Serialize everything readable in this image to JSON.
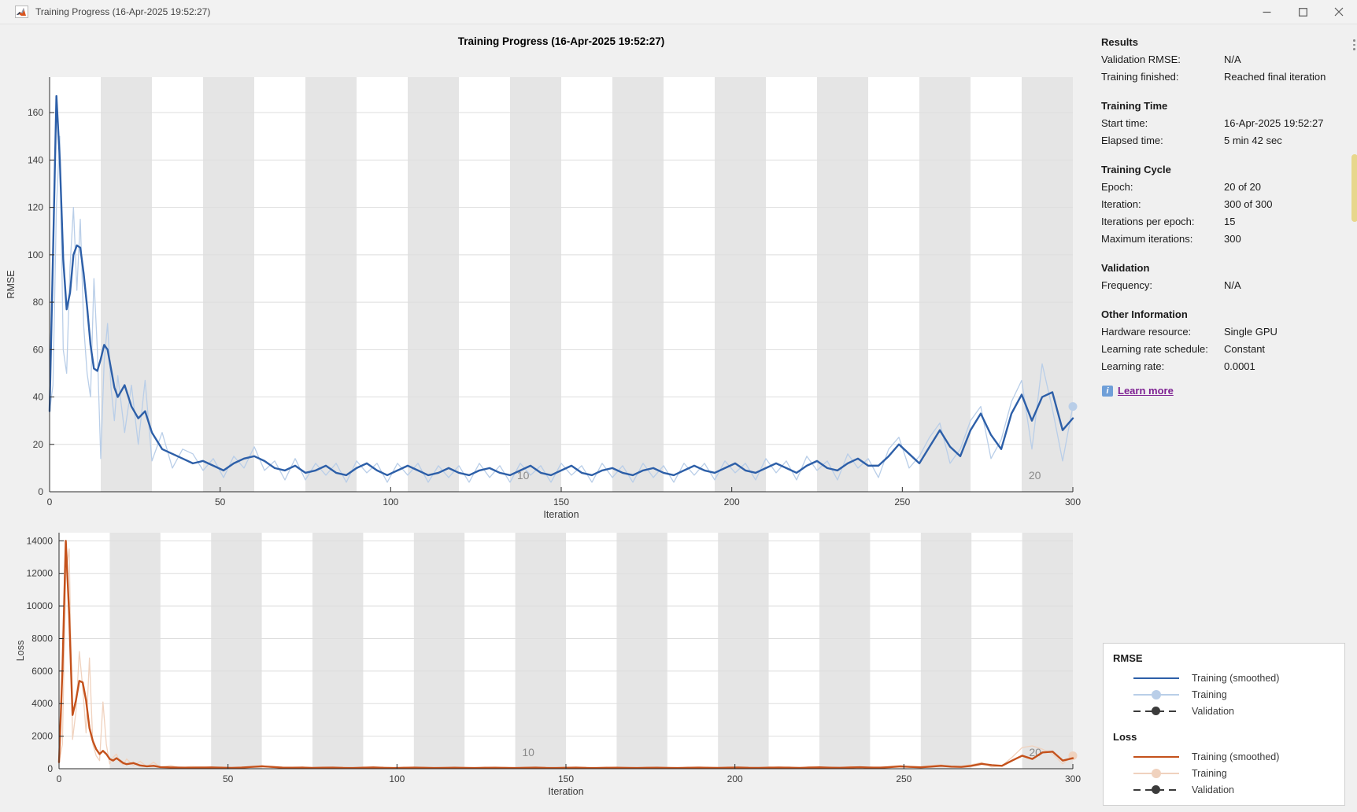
{
  "window": {
    "title": "Training Progress (16-Apr-2025 19:52:27)",
    "controls": [
      "minimize",
      "maximize",
      "close"
    ]
  },
  "figure_title": "Training Progress (16-Apr-2025 19:52:27)",
  "panel": {
    "sections": [
      {
        "title": "Results",
        "rows": [
          {
            "label": "Validation RMSE:",
            "value": "N/A"
          },
          {
            "label": "Training finished:",
            "value": "Reached final iteration"
          }
        ]
      },
      {
        "title": "Training Time",
        "rows": [
          {
            "label": "Start time:",
            "value": "16-Apr-2025 19:52:27"
          },
          {
            "label": "Elapsed time:",
            "value": "5 min 42 sec"
          }
        ]
      },
      {
        "title": "Training Cycle",
        "rows": [
          {
            "label": "Epoch:",
            "value": "20 of 20"
          },
          {
            "label": "Iteration:",
            "value": "300 of 300"
          },
          {
            "label": "Iterations per epoch:",
            "value": "15"
          },
          {
            "label": "Maximum iterations:",
            "value": "300"
          }
        ]
      },
      {
        "title": "Validation",
        "rows": [
          {
            "label": "Frequency:",
            "value": "N/A"
          }
        ]
      },
      {
        "title": "Other Information",
        "rows": [
          {
            "label": "Hardware resource:",
            "value": "Single GPU"
          },
          {
            "label": "Learning rate schedule:",
            "value": "Constant"
          },
          {
            "label": "Learning rate:",
            "value": "0.0001"
          }
        ]
      }
    ],
    "learn_more": "Learn more"
  },
  "legend": {
    "groups": [
      {
        "title": "RMSE",
        "items": [
          {
            "label": "Training (smoothed)",
            "style": "solid",
            "color_key": "rmse_smoothed"
          },
          {
            "label": "Training",
            "style": "marker",
            "color_key": "rmse_raw"
          },
          {
            "label": "Validation",
            "style": "dashed-marker",
            "color_key": "validation"
          }
        ]
      },
      {
        "title": "Loss",
        "items": [
          {
            "label": "Training (smoothed)",
            "style": "solid",
            "color_key": "loss_smoothed"
          },
          {
            "label": "Training",
            "style": "marker",
            "color_key": "loss_raw"
          },
          {
            "label": "Validation",
            "style": "dashed-marker",
            "color_key": "validation"
          }
        ]
      }
    ]
  },
  "colors": {
    "rmse_smoothed": "#2D5FA8",
    "rmse_raw": "#B9CEE8",
    "loss_smoothed": "#C4511B",
    "loss_raw": "#F0D2BE",
    "validation": "#3B3B3B",
    "epoch_band": "#E5E5E5",
    "gridline": "#DEDEDE",
    "axis": "#2B2B2B",
    "tick_text": "#3B3B3B",
    "epoch_label": "#8A8A8A",
    "link": "#7D2092",
    "info_icon": "#6F9FD8"
  },
  "chart_data": [
    {
      "type": "line",
      "id": "rmse",
      "xlabel": "Iteration",
      "ylabel": "RMSE",
      "xlim": [
        0,
        300
      ],
      "ylim": [
        0,
        175
      ],
      "xticks": [
        0,
        50,
        100,
        150,
        200,
        250,
        300
      ],
      "yticks": [
        0,
        20,
        40,
        60,
        80,
        100,
        120,
        140,
        160
      ],
      "grid": true,
      "epochs": {
        "count": 20,
        "iterations_per_epoch": 15,
        "shaded": "even"
      },
      "epoch_labels": [
        {
          "text": "10",
          "iteration": 137
        },
        {
          "text": "20",
          "iteration": 287
        }
      ],
      "x": [
        0,
        1,
        2,
        3,
        4,
        5,
        6,
        7,
        8,
        9,
        10,
        11,
        12,
        13,
        14,
        15,
        16,
        17,
        18,
        19,
        20,
        22,
        24,
        26,
        28,
        30,
        33,
        36,
        39,
        42,
        45,
        48,
        51,
        54,
        57,
        60,
        63,
        66,
        69,
        72,
        75,
        78,
        81,
        84,
        87,
        90,
        93,
        96,
        99,
        102,
        105,
        108,
        111,
        114,
        117,
        120,
        123,
        126,
        129,
        132,
        135,
        138,
        141,
        144,
        147,
        150,
        153,
        156,
        159,
        162,
        165,
        168,
        171,
        174,
        177,
        180,
        183,
        186,
        189,
        192,
        195,
        198,
        201,
        204,
        207,
        210,
        213,
        216,
        219,
        222,
        225,
        228,
        231,
        234,
        237,
        240,
        243,
        246,
        249,
        252,
        255,
        258,
        261,
        264,
        267,
        270,
        273,
        276,
        279,
        282,
        285,
        288,
        291,
        294,
        297,
        300
      ],
      "series": [
        {
          "name": "Training (smoothed)",
          "color_key": "rmse_smoothed",
          "width": 2.4,
          "end_marker": false,
          "y": [
            34,
            100,
            167,
            140,
            98,
            77,
            84,
            100,
            104,
            103,
            92,
            78,
            62,
            52,
            51,
            56,
            62,
            60,
            52,
            44,
            40,
            45,
            36,
            31,
            34,
            25,
            18,
            16,
            14,
            12,
            13,
            11,
            9,
            12,
            14,
            15,
            13,
            10,
            9,
            11,
            8,
            9,
            11,
            8,
            7,
            10,
            12,
            9,
            7,
            9,
            11,
            9,
            7,
            8,
            10,
            8,
            7,
            9,
            10,
            8,
            7,
            9,
            11,
            8,
            7,
            9,
            11,
            8,
            7,
            9,
            10,
            8,
            7,
            9,
            10,
            8,
            7,
            9,
            11,
            9,
            8,
            10,
            12,
            9,
            8,
            10,
            12,
            10,
            8,
            11,
            13,
            10,
            9,
            12,
            14,
            11,
            11,
            15,
            20,
            16,
            12,
            19,
            26,
            19,
            15,
            26,
            33,
            24,
            18,
            33,
            41,
            30,
            40,
            42,
            26,
            31
          ]
        },
        {
          "name": "Training",
          "color_key": "rmse_raw",
          "width": 1.3,
          "end_marker": true,
          "y": [
            34,
            45,
            120,
            150,
            60,
            50,
            95,
            120,
            85,
            115,
            70,
            50,
            40,
            90,
            60,
            14,
            55,
            71,
            44,
            30,
            49,
            25,
            45,
            20,
            47,
            13,
            25,
            10,
            18,
            16,
            9,
            14,
            6,
            15,
            10,
            19,
            9,
            13,
            5,
            14,
            5,
            12,
            7,
            12,
            4,
            13,
            8,
            12,
            4,
            12,
            7,
            12,
            4,
            11,
            6,
            11,
            4,
            12,
            6,
            11,
            4,
            12,
            7,
            11,
            4,
            12,
            7,
            11,
            4,
            12,
            6,
            11,
            4,
            12,
            6,
            11,
            4,
            12,
            7,
            12,
            5,
            13,
            8,
            12,
            5,
            14,
            8,
            13,
            5,
            15,
            9,
            13,
            5,
            16,
            10,
            14,
            6,
            18,
            23,
            10,
            15,
            23,
            29,
            12,
            18,
            30,
            36,
            14,
            22,
            38,
            47,
            18,
            54,
            35,
            13,
            36
          ]
        },
        {
          "name": "Validation",
          "color_key": "validation",
          "width": 1.5,
          "y": []
        }
      ]
    },
    {
      "type": "line",
      "id": "loss",
      "xlabel": "Iteration",
      "ylabel": "Loss",
      "xlim": [
        0,
        300
      ],
      "ylim": [
        0,
        14500
      ],
      "xticks": [
        0,
        50,
        100,
        150,
        200,
        250,
        300
      ],
      "yticks": [
        0,
        2000,
        4000,
        6000,
        8000,
        10000,
        12000,
        14000
      ],
      "grid": true,
      "epochs": {
        "count": 20,
        "iterations_per_epoch": 15,
        "shaded": "even"
      },
      "epoch_labels": [
        {
          "text": "10",
          "iteration": 137
        },
        {
          "text": "20",
          "iteration": 287
        }
      ],
      "x": [
        0,
        1,
        2,
        3,
        4,
        5,
        6,
        7,
        8,
        9,
        10,
        11,
        12,
        13,
        14,
        15,
        16,
        17,
        18,
        19,
        20,
        22,
        24,
        26,
        28,
        30,
        33,
        36,
        39,
        42,
        45,
        48,
        51,
        54,
        57,
        60,
        63,
        66,
        69,
        72,
        75,
        78,
        81,
        84,
        87,
        90,
        93,
        96,
        99,
        102,
        105,
        108,
        111,
        114,
        117,
        120,
        123,
        126,
        129,
        132,
        135,
        138,
        141,
        144,
        147,
        150,
        153,
        156,
        159,
        162,
        165,
        168,
        171,
        174,
        177,
        180,
        183,
        186,
        189,
        192,
        195,
        198,
        201,
        204,
        207,
        210,
        213,
        216,
        219,
        222,
        225,
        228,
        231,
        234,
        237,
        240,
        243,
        246,
        249,
        252,
        255,
        258,
        261,
        264,
        267,
        270,
        273,
        276,
        279,
        282,
        285,
        288,
        291,
        294,
        297,
        300
      ],
      "series": [
        {
          "name": "Training (smoothed)",
          "color_key": "loss_smoothed",
          "width": 2.4,
          "end_marker": false,
          "y": [
            400,
            6000,
            14000,
            9500,
            3300,
            4200,
            5400,
            5300,
            4200,
            2500,
            1700,
            1200,
            900,
            1100,
            900,
            600,
            500,
            650,
            500,
            350,
            280,
            350,
            200,
            150,
            180,
            100,
            80,
            70,
            60,
            70,
            80,
            60,
            50,
            70,
            110,
            150,
            110,
            70,
            60,
            70,
            50,
            60,
            70,
            50,
            45,
            60,
            80,
            55,
            45,
            55,
            70,
            55,
            45,
            50,
            65,
            50,
            45,
            55,
            65,
            50,
            45,
            55,
            70,
            50,
            45,
            55,
            70,
            50,
            45,
            55,
            65,
            50,
            45,
            55,
            65,
            50,
            45,
            55,
            70,
            55,
            50,
            60,
            75,
            55,
            50,
            65,
            75,
            60,
            50,
            70,
            85,
            65,
            55,
            75,
            95,
            70,
            70,
            100,
            140,
            110,
            90,
            130,
            180,
            130,
            110,
            180,
            300,
            220,
            180,
            500,
            800,
            600,
            1000,
            1050,
            500,
            650
          ]
        },
        {
          "name": "Training",
          "color_key": "loss_raw",
          "width": 1.3,
          "end_marker": true,
          "y": [
            400,
            1500,
            12000,
            13500,
            1800,
            3500,
            7200,
            5000,
            2200,
            6800,
            1500,
            800,
            500,
            4100,
            1500,
            300,
            700,
            900,
            400,
            250,
            600,
            200,
            450,
            120,
            400,
            80,
            200,
            50,
            140,
            120,
            60,
            110,
            35,
            120,
            80,
            200,
            70,
            100,
            35,
            110,
            35,
            95,
            55,
            95,
            30,
            100,
            60,
            95,
            30,
            95,
            55,
            95,
            30,
            85,
            45,
            85,
            30,
            95,
            45,
            85,
            30,
            95,
            55,
            85,
            30,
            95,
            55,
            85,
            30,
            95,
            45,
            85,
            30,
            95,
            45,
            85,
            30,
            95,
            55,
            95,
            35,
            105,
            65,
            95,
            35,
            115,
            65,
            105,
            35,
            125,
            75,
            105,
            40,
            135,
            85,
            115,
            45,
            150,
            190,
            80,
            120,
            190,
            240,
            90,
            150,
            250,
            380,
            110,
            180,
            700,
            1300,
            1400,
            1200,
            900,
            300,
            800
          ]
        },
        {
          "name": "Validation",
          "color_key": "validation",
          "width": 1.5,
          "y": []
        }
      ]
    }
  ]
}
